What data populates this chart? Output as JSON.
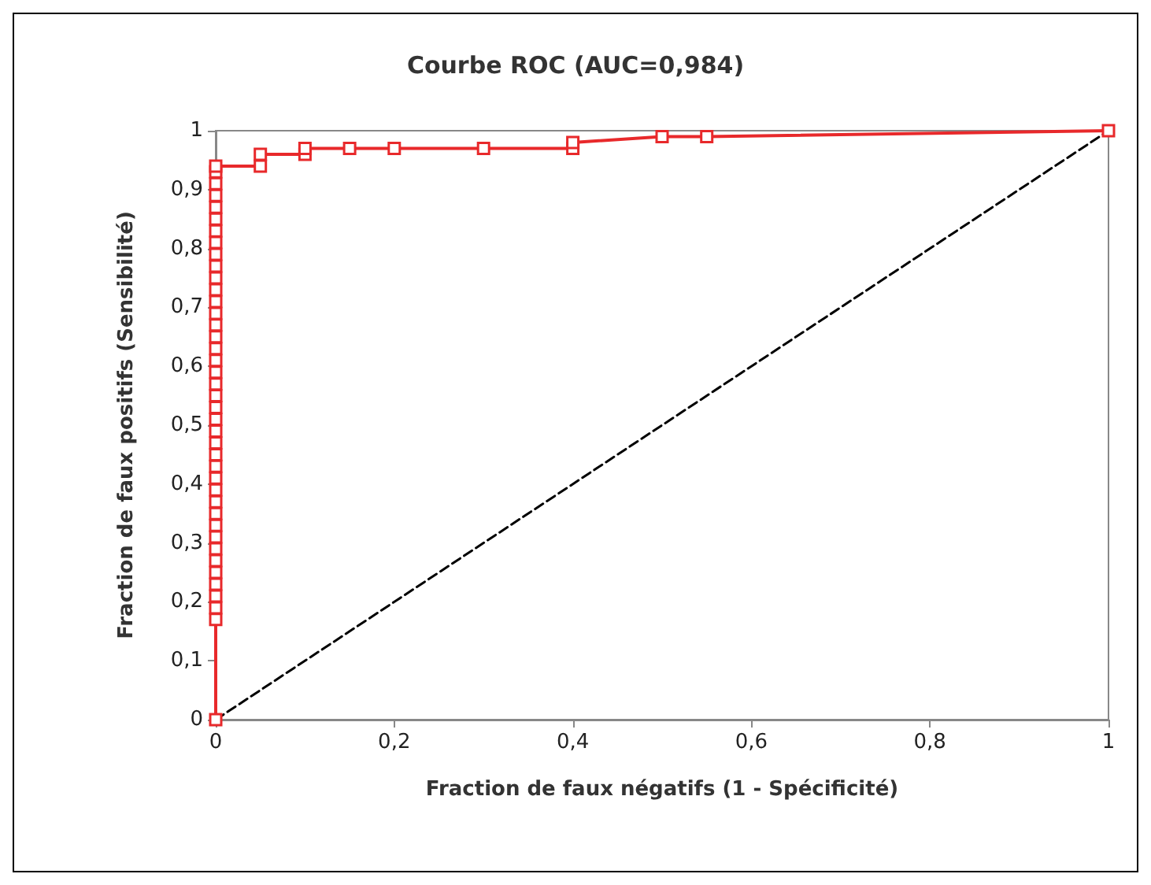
{
  "chart_data": {
    "type": "line",
    "title": "Courbe ROC (AUC=0,984)",
    "xlabel": "Fraction de faux négatifs (1 - Spécificité)",
    "ylabel": "Fraction de faux positifs (Sensibilité)",
    "xlim": [
      0,
      1
    ],
    "ylim": [
      0,
      1
    ],
    "xticks": [
      0,
      {
        "value": 0.2,
        "label": "0,2"
      },
      {
        "value": 0.4,
        "label": "0,4"
      },
      {
        "value": 0.6,
        "label": "0,6"
      },
      {
        "value": 0.8,
        "label": "0,8"
      },
      1
    ],
    "yticks": [
      0,
      {
        "value": 0.1,
        "label": "0,1"
      },
      {
        "value": 0.2,
        "label": "0,2"
      },
      {
        "value": 0.3,
        "label": "0,3"
      },
      {
        "value": 0.4,
        "label": "0,4"
      },
      {
        "value": 0.5,
        "label": "0,5"
      },
      {
        "value": 0.6,
        "label": "0,6"
      },
      {
        "value": 0.7,
        "label": "0,7"
      },
      {
        "value": 0.8,
        "label": "0,8"
      },
      {
        "value": 0.9,
        "label": "0,9"
      },
      1
    ],
    "grid": false,
    "marker": "square",
    "line_style": "solid",
    "series": [
      {
        "color": "#e8292b",
        "x": [
          0,
          0,
          0,
          0,
          0,
          0,
          0,
          0,
          0,
          0,
          0,
          0,
          0,
          0,
          0,
          0,
          0,
          0,
          0,
          0,
          0,
          0,
          0,
          0,
          0,
          0,
          0,
          0,
          0,
          0,
          0,
          0,
          0,
          0,
          0,
          0,
          0,
          0,
          0,
          0,
          0,
          0.05,
          0.05,
          0.1,
          0.1,
          0.15,
          0.2,
          0.3,
          0.4,
          0.4,
          0.5,
          0.55,
          1
        ],
        "values": [
          0,
          0.17,
          0.19,
          0.21,
          0.23,
          0.25,
          0.27,
          0.29,
          0.31,
          0.33,
          0.35,
          0.37,
          0.39,
          0.41,
          0.43,
          0.45,
          0.47,
          0.49,
          0.51,
          0.53,
          0.55,
          0.57,
          0.59,
          0.61,
          0.63,
          0.65,
          0.67,
          0.69,
          0.71,
          0.73,
          0.75,
          0.77,
          0.79,
          0.81,
          0.83,
          0.85,
          0.87,
          0.89,
          0.91,
          0.93,
          0.94,
          0.94,
          0.96,
          0.96,
          0.97,
          0.97,
          0.97,
          0.97,
          0.97,
          0.98,
          0.99,
          0.99,
          1
        ]
      },
      {
        "color": "#000000",
        "x": [
          0,
          1
        ],
        "values": [
          0,
          1
        ],
        "marker": "none",
        "line_style": "dashed"
      }
    ]
  }
}
